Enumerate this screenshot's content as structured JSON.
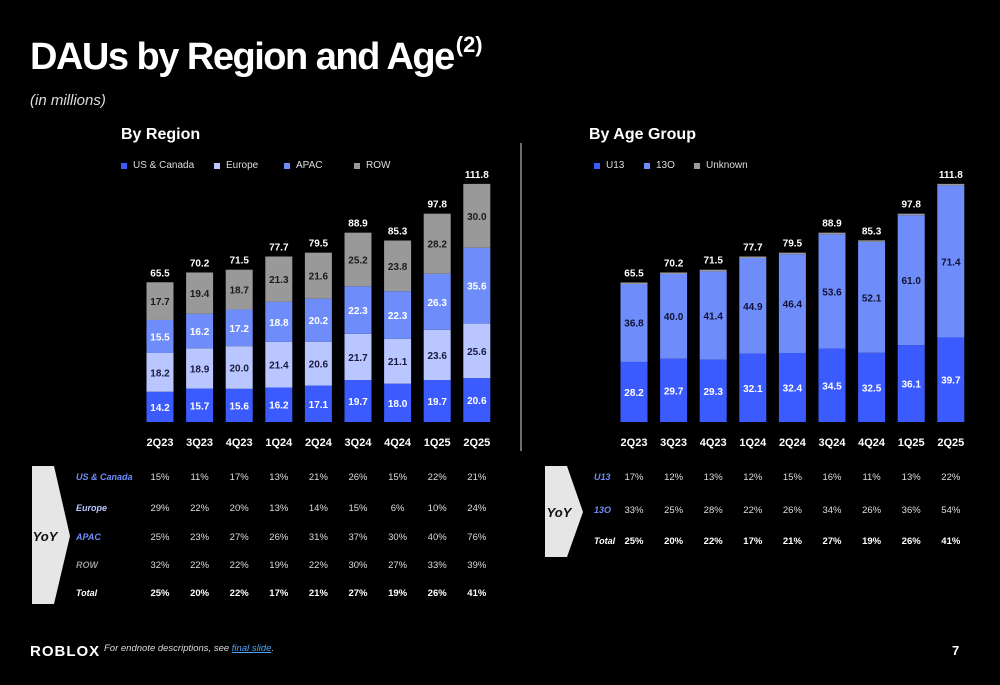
{
  "title": "DAUs by Region and Age",
  "title_sup": "(2)",
  "subtitle": "(in millions)",
  "colors": {
    "us_canada": "#3b5bff",
    "europe": "#b9c6ff",
    "apac": "#6f8dfa",
    "row": "#999999",
    "u13": "#3b5bff",
    "thirteen_plus": "#6f8dfa",
    "unknown": "#999999"
  },
  "chart_data": [
    {
      "type": "bar",
      "stacked": true,
      "title": "By Region",
      "categories": [
        "2Q23",
        "3Q23",
        "4Q23",
        "1Q24",
        "2Q24",
        "3Q24",
        "4Q24",
        "1Q25",
        "2Q25"
      ],
      "series": [
        {
          "name": "US & Canada",
          "values": [
            14.2,
            15.7,
            15.6,
            16.2,
            17.1,
            19.7,
            18.0,
            19.7,
            20.6
          ]
        },
        {
          "name": "Europe",
          "values": [
            18.2,
            18.9,
            20.0,
            21.4,
            20.6,
            21.7,
            21.1,
            23.6,
            25.6
          ]
        },
        {
          "name": "APAC",
          "values": [
            15.5,
            16.2,
            17.2,
            18.8,
            20.2,
            22.3,
            22.3,
            26.3,
            35.6
          ]
        },
        {
          "name": "ROW",
          "values": [
            17.7,
            19.4,
            18.7,
            21.3,
            21.6,
            25.2,
            23.8,
            28.2,
            30.0
          ]
        }
      ],
      "totals": [
        "65.5",
        "70.2",
        "71.5",
        "77.7",
        "79.5",
        "88.9",
        "85.3",
        "97.8",
        "111.8"
      ],
      "legend_position": "top-left",
      "ylim": [
        0,
        125
      ]
    },
    {
      "type": "bar",
      "stacked": true,
      "title": "By Age Group",
      "categories": [
        "2Q23",
        "3Q23",
        "4Q23",
        "1Q24",
        "2Q24",
        "3Q24",
        "4Q24",
        "1Q25",
        "2Q25"
      ],
      "series": [
        {
          "name": "U13",
          "values": [
            28.2,
            29.7,
            29.3,
            32.1,
            32.4,
            34.5,
            32.5,
            36.1,
            39.7
          ]
        },
        {
          "name": "13O",
          "values": [
            36.8,
            40.0,
            41.4,
            44.9,
            46.4,
            53.6,
            52.1,
            61.0,
            71.4
          ]
        },
        {
          "name": "Unknown",
          "values": [
            0.5,
            0.5,
            0.8,
            0.7,
            0.7,
            0.8,
            0.7,
            0.7,
            0.7
          ]
        }
      ],
      "totals": [
        "65.5",
        "70.2",
        "71.5",
        "77.7",
        "79.5",
        "88.9",
        "85.3",
        "97.8",
        "111.8"
      ],
      "legend_position": "top-left",
      "ylim": [
        0,
        125
      ]
    }
  ],
  "yoy_label": "YoY",
  "region_table": {
    "rows": [
      {
        "label": "US & Canada",
        "color": "#6f8dfa",
        "values": [
          "15%",
          "11%",
          "17%",
          "13%",
          "21%",
          "26%",
          "15%",
          "22%",
          "21%"
        ]
      },
      {
        "label": "Europe",
        "color": "#b9c6ff",
        "values": [
          "29%",
          "22%",
          "20%",
          "13%",
          "14%",
          "15%",
          "6%",
          "10%",
          "24%"
        ]
      },
      {
        "label": "APAC",
        "color": "#6f8dfa",
        "values": [
          "25%",
          "23%",
          "27%",
          "26%",
          "31%",
          "37%",
          "30%",
          "40%",
          "76%"
        ]
      },
      {
        "label": "ROW",
        "color": "#999999",
        "values": [
          "32%",
          "22%",
          "22%",
          "19%",
          "22%",
          "30%",
          "27%",
          "33%",
          "39%"
        ]
      },
      {
        "label": "Total",
        "color": "#ffffff",
        "values": [
          "25%",
          "20%",
          "22%",
          "17%",
          "21%",
          "27%",
          "19%",
          "26%",
          "41%"
        ]
      }
    ]
  },
  "age_table": {
    "rows": [
      {
        "label": "U13",
        "color": "#6f8dfa",
        "values": [
          "17%",
          "12%",
          "13%",
          "12%",
          "15%",
          "16%",
          "11%",
          "13%",
          "22%"
        ]
      },
      {
        "label": "13O",
        "color": "#6f8dfa",
        "values": [
          "33%",
          "25%",
          "28%",
          "22%",
          "26%",
          "34%",
          "26%",
          "36%",
          "54%"
        ]
      },
      {
        "label": "Total",
        "color": "#ffffff",
        "values": [
          "25%",
          "20%",
          "22%",
          "17%",
          "21%",
          "27%",
          "19%",
          "26%",
          "41%"
        ]
      }
    ]
  },
  "footer": {
    "logo": "ROBLOX",
    "note_prefix": "For endnote descriptions, see ",
    "note_link": "final slide",
    "note_suffix": ".",
    "page_number": "7"
  }
}
